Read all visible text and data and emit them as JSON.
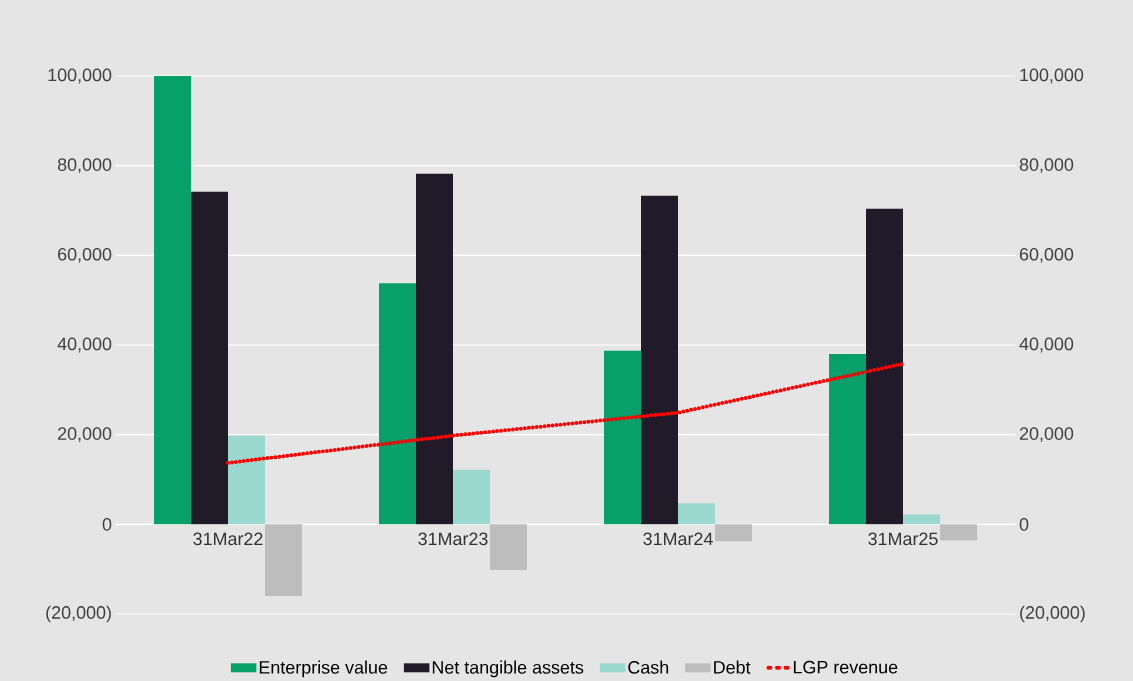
{
  "chart_data": {
    "type": "bar",
    "categories": [
      "31Mar22",
      "31Mar23",
      "31Mar24",
      "31Mar25"
    ],
    "series": [
      {
        "name": "Enterprise value",
        "color": "#079f6a",
        "values": [
          100000,
          53800,
          38700,
          38000
        ]
      },
      {
        "name": "Net tangible assets",
        "color": "#211b29",
        "values": [
          74200,
          78200,
          73300,
          70400
        ]
      },
      {
        "name": "Cash",
        "color": "#9bd8d0",
        "values": [
          19800,
          12200,
          4700,
          2200
        ]
      },
      {
        "name": "Debt",
        "color": "#bdbdbd",
        "values": [
          -16000,
          -10200,
          -3800,
          -3600
        ]
      },
      {
        "name": "LGP revenue",
        "color": "#ff0000",
        "type": "line",
        "axis": "y2",
        "line_style": "dotted",
        "values": [
          13700,
          19800,
          24900,
          35800
        ]
      }
    ],
    "ylim": [
      -20000,
      100000
    ],
    "yticks": [
      {
        "value": -20000,
        "label": "(20,000)"
      },
      {
        "value": 0,
        "label": "0"
      },
      {
        "value": 20000,
        "label": "20,000"
      },
      {
        "value": 40000,
        "label": "40,000"
      },
      {
        "value": 60000,
        "label": "60,000"
      },
      {
        "value": 80000,
        "label": "80,000"
      },
      {
        "value": 100000,
        "label": "100,000"
      }
    ],
    "y2lim": [
      -20000,
      100000
    ],
    "y2ticks": [
      {
        "value": -20000,
        "label": "(20,000)"
      },
      {
        "value": 0,
        "label": "0"
      },
      {
        "value": 20000,
        "label": "20,000"
      },
      {
        "value": 40000,
        "label": "40,000"
      },
      {
        "value": 60000,
        "label": "60,000"
      },
      {
        "value": 80000,
        "label": "80,000"
      },
      {
        "value": 100000,
        "label": "100,000"
      }
    ],
    "grid": "y",
    "legend": "bottom"
  }
}
